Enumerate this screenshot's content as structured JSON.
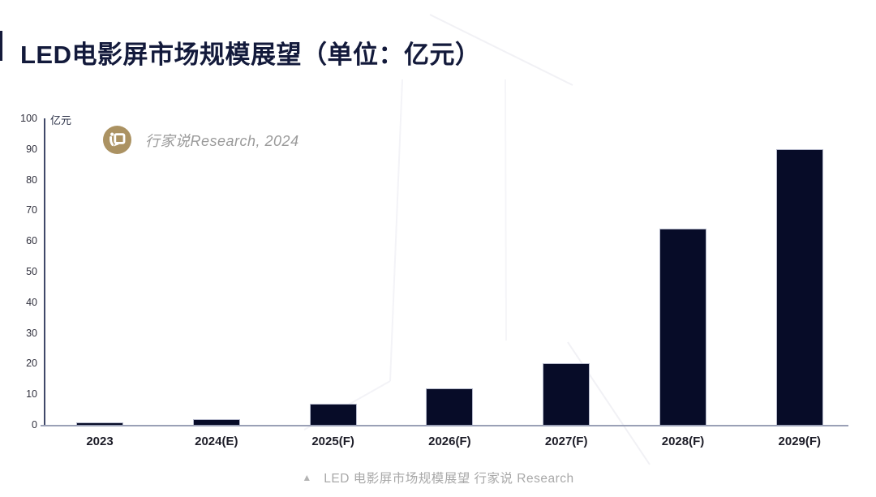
{
  "page": {
    "title": "LED电影屏市场规模展望（单位：亿元）"
  },
  "watermark": {
    "logo_icon": "hangjiashuo-logo",
    "text": "行家说Research, 2024",
    "logo_color": "#ab9262"
  },
  "caption": {
    "marker": "▲",
    "text": "LED 电影屏市场规模展望 行家说 Research"
  },
  "chart_data": {
    "type": "bar",
    "title": "LED电影屏市场规模展望（单位：亿元）",
    "unit_label": "亿元",
    "categories": [
      "2023",
      "2024(E)",
      "2025(F)",
      "2026(F)",
      "2027(F)",
      "2028(F)",
      "2029(F)"
    ],
    "values": [
      0.7,
      1.8,
      7,
      12,
      20,
      64,
      90
    ],
    "ylim": [
      0,
      100
    ],
    "yticks": [
      0,
      10,
      20,
      30,
      40,
      50,
      60,
      70,
      80,
      90,
      100
    ],
    "grid": false,
    "legend": "none",
    "bar_color": "#070c28",
    "bar_border_color": "#b5b9cb",
    "y_axis_color": "#404869",
    "baseline_color": "#9aa0b6",
    "title_color": "#131a3b"
  }
}
